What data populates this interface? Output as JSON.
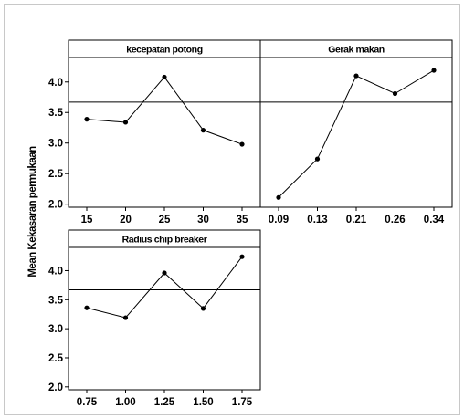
{
  "chart_data": {
    "type": "line",
    "title": "",
    "ylabel": "Mean Kekasaran permukaan",
    "ylim": [
      1.95,
      4.4
    ],
    "yticks": [
      2.0,
      2.5,
      3.0,
      3.5,
      4.0
    ],
    "yticklabels": [
      "2.0",
      "2.5",
      "3.0",
      "3.5",
      "4.0"
    ],
    "reference_line": 3.67,
    "grid": false,
    "panels": [
      {
        "title": "kecepatan potong",
        "categories": [
          "15",
          "20",
          "25",
          "30",
          "35"
        ],
        "values": [
          3.39,
          3.34,
          4.08,
          3.21,
          2.98
        ]
      },
      {
        "title": "Gerak makan",
        "categories": [
          "0.09",
          "0.13",
          "0.21",
          "0.26",
          "0.34"
        ],
        "values": [
          2.11,
          2.74,
          4.1,
          3.81,
          4.19
        ]
      },
      {
        "title": "Radius chip breaker",
        "categories": [
          "0.75",
          "1.00",
          "1.25",
          "1.50",
          "1.75"
        ],
        "values": [
          3.36,
          3.19,
          3.96,
          3.35,
          4.24
        ]
      }
    ]
  }
}
